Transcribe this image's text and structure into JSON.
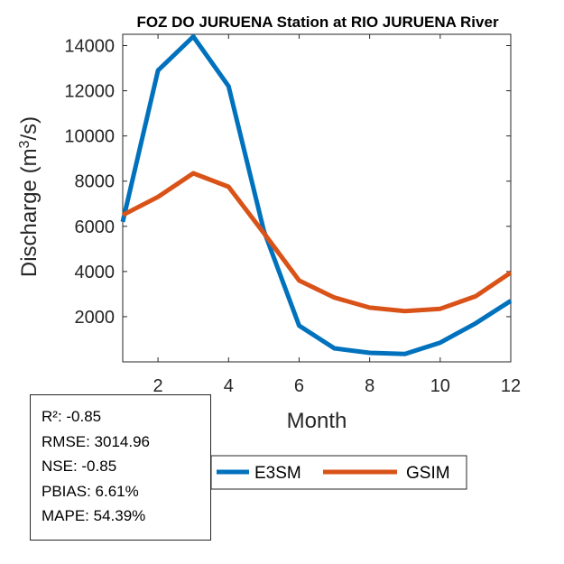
{
  "chart_data": {
    "type": "line",
    "title": "FOZ DO JURUENA  Station at  RIO JURUENA  River",
    "xlabel": "Month",
    "ylabel": "Discharge (m³/s)",
    "ylabel_base": "Discharge (m",
    "ylabel_sup": "3",
    "ylabel_tail": "/s)",
    "xlim": [
      1,
      12
    ],
    "ylim": [
      0,
      14500
    ],
    "xticks": [
      2,
      4,
      6,
      8,
      10,
      12
    ],
    "yticks": [
      2000,
      4000,
      6000,
      8000,
      10000,
      12000,
      14000
    ],
    "x": [
      1,
      2,
      3,
      4,
      5,
      6,
      7,
      8,
      9,
      10,
      11,
      12
    ],
    "series": [
      {
        "name": "E3SM",
        "color": "#0072BD",
        "values": [
          6200,
          12900,
          14400,
          12200,
          5800,
          1600,
          600,
          400,
          350,
          850,
          1700,
          2700
        ]
      },
      {
        "name": "GSIM",
        "color": "#D95319",
        "values": [
          6500,
          7300,
          8350,
          7750,
          5700,
          3600,
          2850,
          2400,
          2250,
          2350,
          2900,
          3950
        ]
      }
    ],
    "legend_position": "bottom-right"
  },
  "stats": {
    "r2": "R²: -0.85",
    "rmse": "RMSE: 3014.96",
    "nse": "NSE: -0.85",
    "pbias": "PBIAS: 6.61%",
    "mape": "MAPE: 54.39%"
  }
}
